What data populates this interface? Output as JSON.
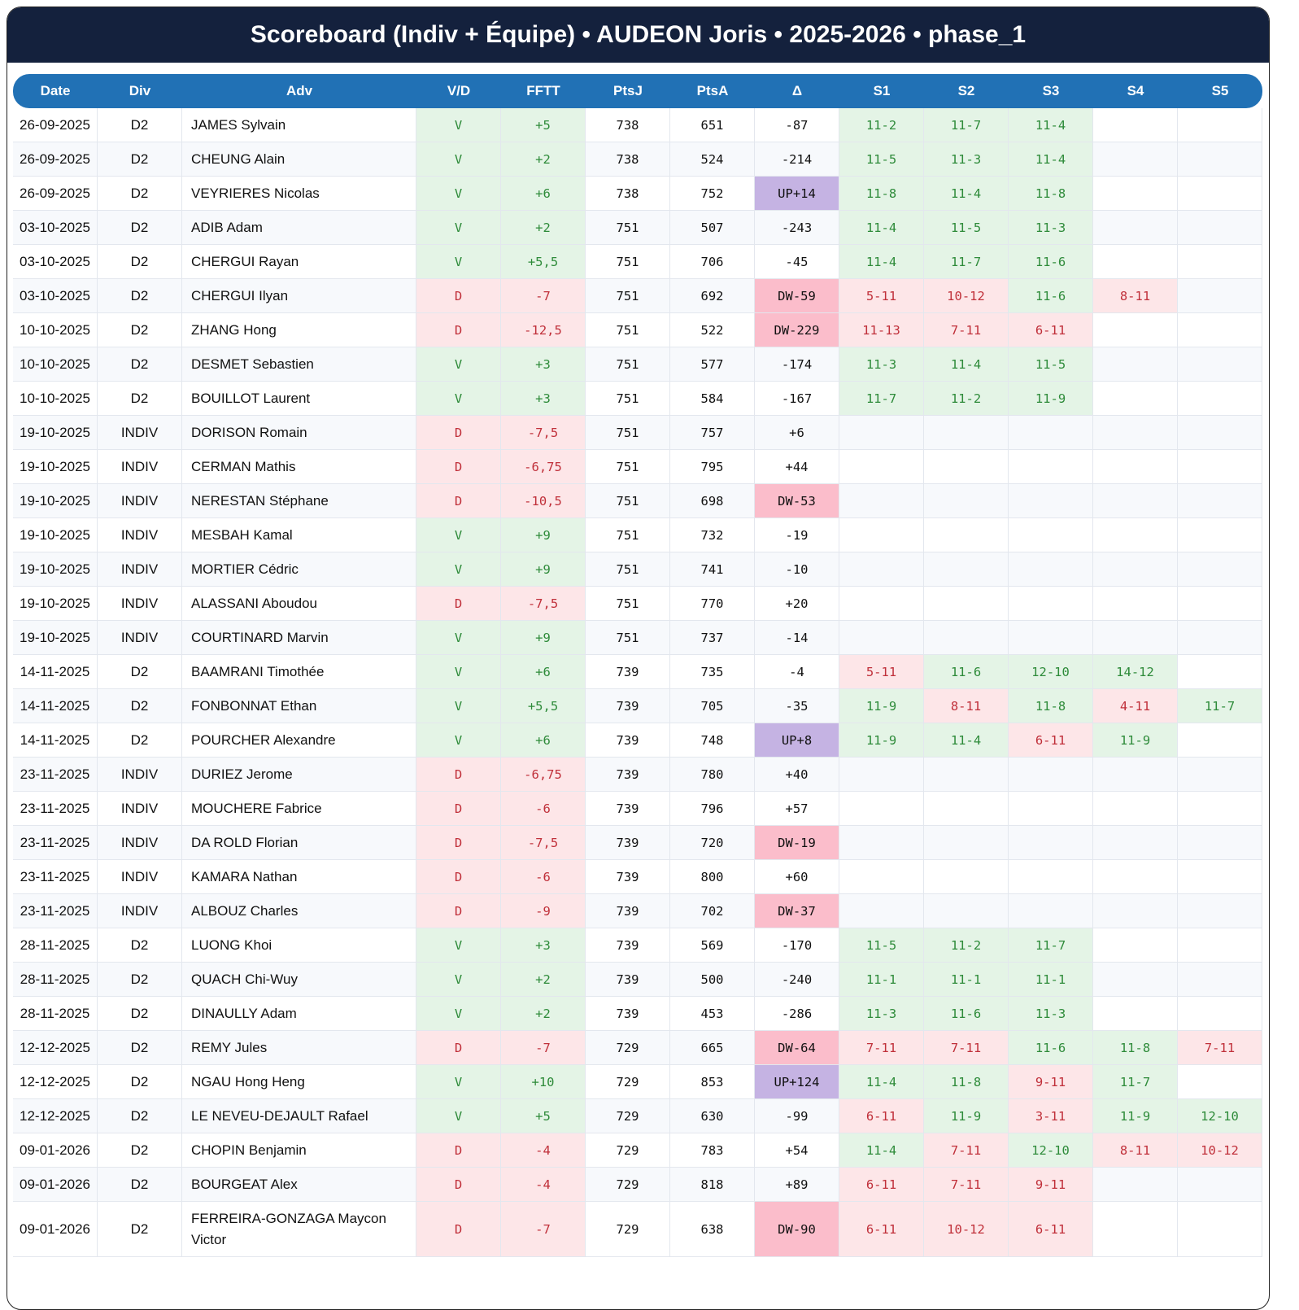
{
  "header": {
    "title": "Scoreboard (Indiv + Équipe) • AUDEON Joris • 2025-2026 • phase_1"
  },
  "table": {
    "columns": [
      "Date",
      "Div",
      "Adv",
      "V/D",
      "FFTT",
      "PtsJ",
      "PtsA",
      "Δ",
      "S1",
      "S2",
      "S3",
      "S4",
      "S5"
    ],
    "rows": [
      [
        "26-09-2025",
        "D2",
        "JAMES Sylvain",
        "V",
        "+5",
        "738",
        "651",
        "-87",
        "11-2",
        "11-7",
        "11-4"
      ],
      [
        "26-09-2025",
        "D2",
        "CHEUNG Alain",
        "V",
        "+2",
        "738",
        "524",
        "-214",
        "11-5",
        "11-3",
        "11-4"
      ],
      [
        "26-09-2025",
        "D2",
        "VEYRIERES Nicolas",
        "V",
        "+6",
        "738",
        "752",
        "UP+14",
        "11-8",
        "11-4",
        "11-8"
      ],
      [
        "03-10-2025",
        "D2",
        "ADIB Adam",
        "V",
        "+2",
        "751",
        "507",
        "-243",
        "11-4",
        "11-5",
        "11-3"
      ],
      [
        "03-10-2025",
        "D2",
        "CHERGUI Rayan",
        "V",
        "+5,5",
        "751",
        "706",
        "-45",
        "11-4",
        "11-7",
        "11-6"
      ],
      [
        "03-10-2025",
        "D2",
        "CHERGUI Ilyan",
        "D",
        "-7",
        "751",
        "692",
        "DW-59",
        "5-11",
        "10-12",
        "11-6",
        "8-11"
      ],
      [
        "10-10-2025",
        "D2",
        "ZHANG Hong",
        "D",
        "-12,5",
        "751",
        "522",
        "DW-229",
        "11-13",
        "7-11",
        "6-11"
      ],
      [
        "10-10-2025",
        "D2",
        "DESMET Sebastien",
        "V",
        "+3",
        "751",
        "577",
        "-174",
        "11-3",
        "11-4",
        "11-5"
      ],
      [
        "10-10-2025",
        "D2",
        "BOUILLOT Laurent",
        "V",
        "+3",
        "751",
        "584",
        "-167",
        "11-7",
        "11-2",
        "11-9"
      ],
      [
        "19-10-2025",
        "INDIV",
        "DORISON Romain",
        "D",
        "-7,5",
        "751",
        "757",
        "+6"
      ],
      [
        "19-10-2025",
        "INDIV",
        "CERMAN Mathis",
        "D",
        "-6,75",
        "751",
        "795",
        "+44"
      ],
      [
        "19-10-2025",
        "INDIV",
        "NERESTAN Stéphane",
        "D",
        "-10,5",
        "751",
        "698",
        "DW-53"
      ],
      [
        "19-10-2025",
        "INDIV",
        "MESBAH Kamal",
        "V",
        "+9",
        "751",
        "732",
        "-19"
      ],
      [
        "19-10-2025",
        "INDIV",
        "MORTIER Cédric",
        "V",
        "+9",
        "751",
        "741",
        "-10"
      ],
      [
        "19-10-2025",
        "INDIV",
        "ALASSANI Aboudou",
        "D",
        "-7,5",
        "751",
        "770",
        "+20"
      ],
      [
        "19-10-2025",
        "INDIV",
        "COURTINARD Marvin",
        "V",
        "+9",
        "751",
        "737",
        "-14"
      ],
      [
        "14-11-2025",
        "D2",
        "BAAMRANI Timothée",
        "V",
        "+6",
        "739",
        "735",
        "-4",
        "5-11",
        "11-6",
        "12-10",
        "14-12"
      ],
      [
        "14-11-2025",
        "D2",
        "FONBONNAT Ethan",
        "V",
        "+5,5",
        "739",
        "705",
        "-35",
        "11-9",
        "8-11",
        "11-8",
        "4-11",
        "11-7"
      ],
      [
        "14-11-2025",
        "D2",
        "POURCHER Alexandre",
        "V",
        "+6",
        "739",
        "748",
        "UP+8",
        "11-9",
        "11-4",
        "6-11",
        "11-9"
      ],
      [
        "23-11-2025",
        "INDIV",
        "DURIEZ Jerome",
        "D",
        "-6,75",
        "739",
        "780",
        "+40"
      ],
      [
        "23-11-2025",
        "INDIV",
        "MOUCHERE Fabrice",
        "D",
        "-6",
        "739",
        "796",
        "+57"
      ],
      [
        "23-11-2025",
        "INDIV",
        "DA ROLD Florian",
        "D",
        "-7,5",
        "739",
        "720",
        "DW-19"
      ],
      [
        "23-11-2025",
        "INDIV",
        "KAMARA Nathan",
        "D",
        "-6",
        "739",
        "800",
        "+60"
      ],
      [
        "23-11-2025",
        "INDIV",
        "ALBOUZ Charles",
        "D",
        "-9",
        "739",
        "702",
        "DW-37"
      ],
      [
        "28-11-2025",
        "D2",
        "LUONG Khoi",
        "V",
        "+3",
        "739",
        "569",
        "-170",
        "11-5",
        "11-2",
        "11-7"
      ],
      [
        "28-11-2025",
        "D2",
        "QUACH Chi-Wuy",
        "V",
        "+2",
        "739",
        "500",
        "-240",
        "11-1",
        "11-1",
        "11-1"
      ],
      [
        "28-11-2025",
        "D2",
        "DINAULLY Adam",
        "V",
        "+2",
        "739",
        "453",
        "-286",
        "11-3",
        "11-6",
        "11-3"
      ],
      [
        "12-12-2025",
        "D2",
        "REMY Jules",
        "D",
        "-7",
        "729",
        "665",
        "DW-64",
        "7-11",
        "7-11",
        "11-6",
        "11-8",
        "7-11"
      ],
      [
        "12-12-2025",
        "D2",
        "NGAU Hong Heng",
        "V",
        "+10",
        "729",
        "853",
        "UP+124",
        "11-4",
        "11-8",
        "9-11",
        "11-7"
      ],
      [
        "12-12-2025",
        "D2",
        "LE NEVEU-DEJAULT Rafael",
        "V",
        "+5",
        "729",
        "630",
        "-99",
        "6-11",
        "11-9",
        "3-11",
        "11-9",
        "12-10"
      ],
      [
        "09-01-2026",
        "D2",
        "CHOPIN Benjamin",
        "D",
        "-4",
        "729",
        "783",
        "+54",
        "11-4",
        "7-11",
        "12-10",
        "8-11",
        "10-12"
      ],
      [
        "09-01-2026",
        "D2",
        "BOURGEAT Alex",
        "D",
        "-4",
        "729",
        "818",
        "+89",
        "6-11",
        "7-11",
        "9-11"
      ],
      [
        "09-01-2026",
        "D2",
        "FERREIRA-GONZAGA Maycon Victor",
        "D",
        "-7",
        "729",
        "638",
        "DW-90",
        "6-11",
        "10-12",
        "6-11"
      ]
    ]
  }
}
